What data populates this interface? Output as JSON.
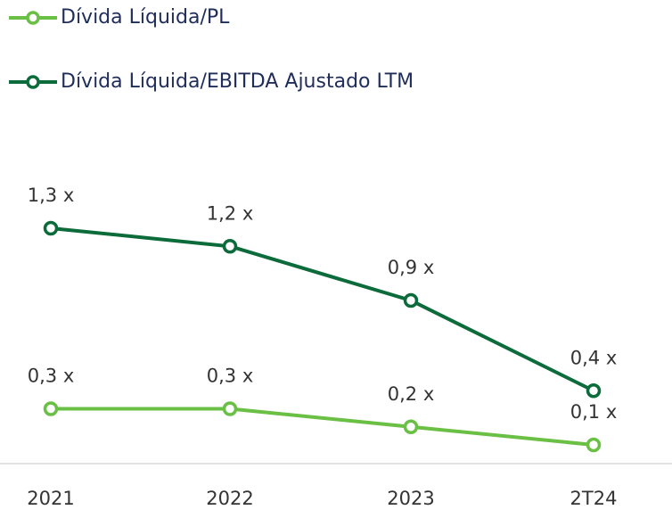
{
  "chart_data": {
    "type": "line",
    "categories": [
      "2021",
      "2022",
      "2023",
      "2T24"
    ],
    "series": [
      {
        "name": "Dívida Líquida/PL",
        "color": "#6abf45",
        "values": [
          0.3,
          0.3,
          0.2,
          0.1
        ],
        "value_labels": [
          "0,3 x",
          "0,3 x",
          "0,2 x",
          "0,1 x"
        ]
      },
      {
        "name": "Dívida Líquida/EBITDA Ajustado LTM",
        "color": "#0b6b3a",
        "values": [
          1.3,
          1.2,
          0.9,
          0.4
        ],
        "value_labels": [
          "1,3 x",
          "1,2 x",
          "0,9 x",
          "0,4 x"
        ]
      }
    ]
  }
}
